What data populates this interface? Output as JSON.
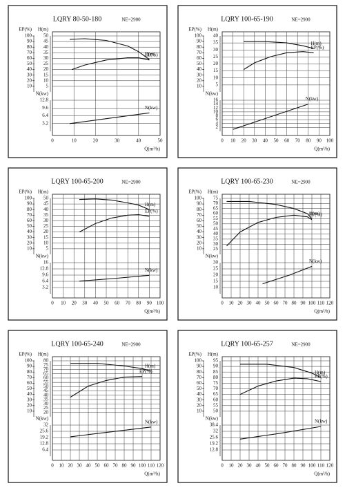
{
  "chart_data": [
    {
      "type": "line",
      "title": "LQRY 80-50-180",
      "note": "NE=2900",
      "xlabel": "Q(m³/h)",
      "xlim": [
        0,
        50
      ],
      "xticks": [
        0,
        10,
        20,
        30,
        40,
        50
      ],
      "axes": {
        "ep": {
          "label": "EP(%)",
          "lim": [
            0,
            100
          ],
          "ticks": [
            10,
            20,
            30,
            40,
            50,
            60,
            70,
            80,
            90,
            100
          ]
        },
        "h": {
          "label": "H(m)",
          "lim": [
            0,
            50
          ],
          "ticks": [
            5,
            10,
            15,
            20,
            25,
            30,
            35,
            40,
            45,
            50
          ]
        },
        "n": {
          "label": "N(kw)",
          "lim": [
            0,
            12.8
          ],
          "ticks": [
            3.2,
            6.4,
            9.6,
            12.8
          ]
        }
      },
      "series": [
        {
          "name": "H(m)",
          "axis": "h",
          "x": [
            8,
            15,
            25,
            35,
            40,
            45
          ],
          "values": [
            47,
            47.5,
            46,
            41,
            36,
            29
          ]
        },
        {
          "name": "EP(%)",
          "axis": "ep",
          "x": [
            9,
            15,
            25,
            35,
            40,
            45
          ],
          "values": [
            40,
            48,
            57,
            61,
            61,
            57
          ]
        },
        {
          "name": "N(kw)",
          "axis": "n",
          "x": [
            8,
            25,
            45
          ],
          "values": [
            3.2,
            5.2,
            7.6
          ]
        }
      ]
    },
    {
      "type": "line",
      "title": "LQRY 100-65-190",
      "note": "NE=2900",
      "xlabel": "Q(m³/h)",
      "xlim": [
        0,
        100
      ],
      "xticks": [
        0,
        10,
        20,
        30,
        40,
        50,
        60,
        70,
        80,
        90,
        100
      ],
      "axes": {
        "ep": {
          "label": "EP(%)",
          "lim": [
            0,
            100
          ],
          "ticks": [
            10,
            20,
            30,
            40,
            50,
            60,
            70,
            80,
            90,
            100
          ]
        },
        "h": {
          "label": "H(m)",
          "lim": [
            0,
            40
          ],
          "ticks": [
            5,
            10,
            15,
            20,
            25,
            30,
            35,
            40
          ]
        },
        "n": {
          "label": "N(kw)",
          "lim": [
            0,
            16
          ],
          "ticks": [
            2,
            4,
            6,
            8,
            10,
            12,
            14,
            16
          ]
        }
      },
      "series": [
        {
          "name": "H(m)",
          "axis": "h",
          "x": [
            20,
            40,
            60,
            75,
            85
          ],
          "values": [
            36,
            36,
            35,
            33,
            31
          ]
        },
        {
          "name": "EP(%)",
          "axis": "ep",
          "x": [
            20,
            30,
            45,
            60,
            75,
            85
          ],
          "values": [
            40,
            52,
            63,
            70,
            72,
            70
          ]
        },
        {
          "name": "N(kw)",
          "axis": "n",
          "x": [
            10,
            45,
            80
          ],
          "values": [
            1,
            7.5,
            14
          ]
        }
      ]
    },
    {
      "type": "line",
      "title": "LQRY 100-65-200",
      "note": "NE=2900",
      "xlabel": "Q(m³/h)",
      "xlim": [
        0,
        100
      ],
      "xticks": [
        0,
        10,
        20,
        30,
        40,
        50,
        60,
        70,
        80,
        90,
        100
      ],
      "axes": {
        "ep": {
          "label": "EP(%)",
          "lim": [
            0,
            100
          ],
          "ticks": [
            10,
            20,
            30,
            40,
            50,
            60,
            70,
            80,
            90,
            100
          ]
        },
        "h": {
          "label": "H(m)",
          "lim": [
            0,
            50
          ],
          "ticks": [
            5,
            10,
            15,
            20,
            25,
            30,
            35,
            40,
            45,
            50
          ]
        },
        "n": {
          "label": "N(kw)",
          "lim": [
            0,
            16
          ],
          "ticks": [
            3.2,
            6.4,
            9.6,
            12.8,
            16
          ]
        }
      },
      "series": [
        {
          "name": "H(m)",
          "axis": "h",
          "x": [
            25,
            40,
            55,
            70,
            80,
            90
          ],
          "values": [
            49,
            49.5,
            48.5,
            46,
            44,
            40
          ]
        },
        {
          "name": "EP(%)",
          "axis": "ep",
          "x": [
            25,
            40,
            55,
            70,
            80,
            90
          ],
          "values": [
            40,
            55,
            65,
            70,
            71,
            68
          ]
        },
        {
          "name": "N(kw)",
          "axis": "n",
          "x": [
            25,
            60,
            90
          ],
          "values": [
            6.5,
            8,
            9.5
          ]
        }
      ]
    },
    {
      "type": "line",
      "title": "LQRY 100-65-230",
      "note": "NE=2900",
      "xlabel": "Q(m³/h)",
      "xlim": [
        0,
        120
      ],
      "xticks": [
        0,
        10,
        20,
        30,
        40,
        50,
        60,
        70,
        80,
        90,
        100,
        110,
        120
      ],
      "axes": {
        "ep": {
          "label": "EP(%)",
          "lim": [
            0,
            100
          ],
          "ticks": [
            10,
            20,
            30,
            40,
            50,
            60,
            70,
            80,
            90,
            100
          ]
        },
        "h": {
          "label": "H(m)",
          "lim": [
            20,
            75
          ],
          "ticks": [
            25,
            30,
            35,
            40,
            45,
            50,
            55,
            60,
            65,
            70,
            75
          ]
        },
        "n": {
          "label": "N(kw)",
          "lim": [
            5,
            30
          ],
          "ticks": [
            10,
            15,
            20,
            25,
            30
          ]
        }
      },
      "series": [
        {
          "name": "H(m)",
          "axis": "h",
          "x": [
            5,
            30,
            60,
            80,
            95,
            100
          ],
          "values": [
            72,
            72,
            69,
            65,
            60,
            55
          ]
        },
        {
          "name": "EP(%)",
          "axis": "ep",
          "x": [
            5,
            20,
            40,
            60,
            80,
            95,
            100
          ],
          "values": [
            15,
            40,
            57,
            66,
            70,
            67,
            62
          ]
        },
        {
          "name": "N(kw)",
          "axis": "n",
          "x": [
            45,
            75,
            100
          ],
          "values": [
            13,
            20,
            27
          ]
        }
      ]
    },
    {
      "type": "line",
      "title": "LQRY 100-65-240",
      "note": "NE=2900",
      "xlabel": "Q(m³/h)",
      "xlim": [
        0,
        120
      ],
      "xticks": [
        0,
        10,
        20,
        30,
        40,
        50,
        60,
        70,
        80,
        90,
        100,
        110,
        120
      ],
      "axes": {
        "ep": {
          "label": "EP(%)",
          "lim": [
            0,
            100
          ],
          "ticks": [
            10,
            20,
            30,
            40,
            50,
            60,
            70,
            80,
            90,
            100
          ]
        },
        "h": {
          "label": "H(m)",
          "lim": [
            15,
            80
          ],
          "ticks": [
            20,
            25,
            30,
            35,
            40,
            45,
            50,
            55,
            60,
            65,
            70,
            75,
            80
          ]
        },
        "n": {
          "label": "N(kw)",
          "lim": [
            0,
            32
          ],
          "ticks": [
            6.4,
            12.8,
            19.2,
            25.6,
            32
          ]
        }
      },
      "series": [
        {
          "name": "H(m)",
          "axis": "h",
          "x": [
            20,
            50,
            80,
            100,
            110
          ],
          "values": [
            77,
            77,
            74,
            71,
            68
          ]
        },
        {
          "name": "EP(%)",
          "axis": "ep",
          "x": [
            20,
            40,
            60,
            80,
            100
          ],
          "values": [
            35,
            55,
            65,
            71,
            72
          ]
        },
        {
          "name": "N(kw)",
          "axis": "n",
          "x": [
            20,
            65,
            110
          ],
          "values": [
            20,
            25,
            30
          ]
        }
      ]
    },
    {
      "type": "line",
      "title": "LQRY 100-65-257",
      "note": "NE=2900",
      "xlabel": "Q(m³/h)",
      "xlim": [
        0,
        120
      ],
      "xticks": [
        0,
        10,
        20,
        30,
        40,
        50,
        60,
        70,
        80,
        90,
        100,
        110,
        120
      ],
      "axes": {
        "ep": {
          "label": "EP(%)",
          "lim": [
            0,
            100
          ],
          "ticks": [
            10,
            20,
            30,
            40,
            50,
            60,
            70,
            80,
            90,
            100
          ]
        },
        "h": {
          "label": "H(m)",
          "lim": [
            45,
            95
          ],
          "ticks": [
            50,
            55,
            60,
            65,
            70,
            75,
            80,
            85,
            90,
            95
          ]
        },
        "n": {
          "label": "N(kw)",
          "lim": [
            6.4,
            38.4
          ],
          "ticks": [
            12.8,
            19.2,
            25.6,
            32,
            38.4
          ]
        }
      },
      "series": [
        {
          "name": "H(m)",
          "axis": "h",
          "x": [
            20,
            50,
            80,
            100,
            110
          ],
          "values": [
            92,
            92,
            89,
            84,
            80
          ]
        },
        {
          "name": "EP(%)",
          "axis": "ep",
          "x": [
            20,
            40,
            60,
            80,
            95,
            110
          ],
          "values": [
            40,
            55,
            64,
            69,
            68,
            63
          ]
        },
        {
          "name": "N(kw)",
          "axis": "n",
          "x": [
            20,
            65,
            110
          ],
          "values": [
            24,
            30,
            37
          ]
        }
      ]
    }
  ]
}
